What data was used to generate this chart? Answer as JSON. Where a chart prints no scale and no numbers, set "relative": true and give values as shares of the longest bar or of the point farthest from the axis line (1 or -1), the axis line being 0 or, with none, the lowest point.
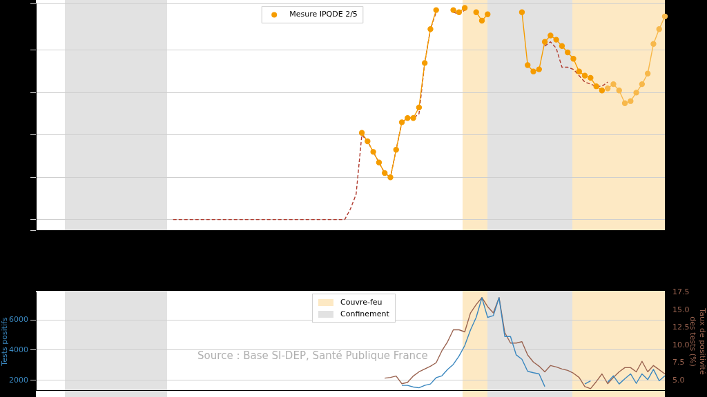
{
  "chart_data": [
    {
      "type": "line",
      "relative": true,
      "categories": [
        null,
        null,
        null,
        null,
        null,
        null,
        null,
        null,
        null,
        null,
        null,
        null,
        null,
        null,
        null,
        null,
        null,
        null,
        null,
        null,
        null,
        null,
        null,
        null,
        null,
        null,
        null,
        null,
        null,
        null,
        null,
        null,
        null,
        null,
        null,
        null,
        null,
        null,
        null,
        null,
        null,
        null,
        null,
        null,
        null,
        null,
        null,
        null,
        null,
        null,
        null,
        null,
        null,
        null,
        null,
        null,
        null,
        null,
        null,
        null,
        null,
        null,
        null,
        null,
        null,
        null,
        null,
        null,
        null,
        null,
        null,
        null,
        null,
        null,
        null,
        null,
        null,
        null,
        null,
        null,
        null,
        null,
        null,
        null,
        null,
        null,
        null,
        null,
        null,
        null,
        null,
        null,
        null,
        null,
        null,
        null,
        null,
        null,
        null,
        null,
        null,
        null,
        null,
        null,
        null,
        null,
        null,
        null,
        null,
        null,
        null
      ],
      "tick_labels": false,
      "grid": "y",
      "legend": "top",
      "series": [
        {
          "name": "Mesure IPQDE 2/5",
          "color": "#f59c00",
          "marker": "circle",
          "line_style": "solid",
          "values": [
            null,
            null,
            null,
            null,
            null,
            null,
            null,
            null,
            null,
            null,
            null,
            null,
            null,
            null,
            null,
            null,
            null,
            null,
            null,
            null,
            null,
            null,
            null,
            null,
            null,
            null,
            null,
            null,
            null,
            null,
            null,
            null,
            null,
            null,
            null,
            null,
            null,
            null,
            null,
            null,
            null,
            null,
            null,
            null,
            null,
            null,
            null,
            null,
            null,
            null,
            null,
            null,
            null,
            null,
            null,
            null,
            null,
            0.41,
            0.37,
            0.32,
            0.27,
            0.22,
            0.2,
            0.33,
            0.46,
            0.48,
            0.48,
            0.53,
            0.74,
            0.9,
            0.99,
            null,
            null,
            0.99,
            0.98,
            1.0,
            null,
            0.98,
            0.94,
            0.97,
            null,
            null,
            null,
            null,
            null,
            0.98,
            0.73,
            0.7,
            0.71,
            0.84,
            0.87,
            0.85,
            0.82,
            0.79,
            0.76,
            0.7,
            0.68,
            0.67,
            0.63,
            0.61,
            null,
            null,
            null,
            null,
            null,
            null,
            null,
            null,
            null,
            null,
            null
          ]
        },
        {
          "color": "#f7b84b",
          "marker": "circle",
          "line_style": "solid",
          "values": [
            null,
            null,
            null,
            null,
            null,
            null,
            null,
            null,
            null,
            null,
            null,
            null,
            null,
            null,
            null,
            null,
            null,
            null,
            null,
            null,
            null,
            null,
            null,
            null,
            null,
            null,
            null,
            null,
            null,
            null,
            null,
            null,
            null,
            null,
            null,
            null,
            null,
            null,
            null,
            null,
            null,
            null,
            null,
            null,
            null,
            null,
            null,
            null,
            null,
            null,
            null,
            null,
            null,
            null,
            null,
            null,
            null,
            null,
            null,
            null,
            null,
            null,
            null,
            null,
            null,
            null,
            null,
            null,
            null,
            null,
            null,
            null,
            null,
            null,
            null,
            null,
            null,
            null,
            null,
            null,
            null,
            null,
            null,
            null,
            null,
            null,
            null,
            null,
            null,
            null,
            null,
            null,
            null,
            null,
            null,
            null,
            null,
            null,
            null,
            null,
            0.62,
            0.64,
            0.61,
            0.55,
            0.56,
            0.6,
            0.64,
            0.69,
            0.83,
            0.9,
            0.96
          ]
        },
        {
          "color": "#b03a2e",
          "marker": "none",
          "line_style": "dashed",
          "values": [
            null,
            null,
            null,
            null,
            null,
            null,
            null,
            null,
            null,
            null,
            null,
            null,
            null,
            null,
            null,
            null,
            null,
            null,
            null,
            null,
            null,
            null,
            null,
            null,
            0,
            0,
            0,
            0,
            0,
            0,
            0,
            0,
            0,
            0,
            0,
            0,
            0,
            0,
            0,
            0,
            0,
            0,
            0,
            0,
            0,
            0,
            0,
            0,
            0,
            0,
            0,
            0,
            0,
            0,
            0,
            0.05,
            0.12,
            0.4,
            0.37,
            0.32,
            0.27,
            0.22,
            0.2,
            0.33,
            0.46,
            0.48,
            0.48,
            0.5,
            0.74,
            0.9,
            0.98,
            null,
            null,
            0.98,
            0.97,
            0.99,
            null,
            null,
            null,
            null,
            null,
            null,
            null,
            null,
            null,
            null,
            null,
            null,
            null,
            0.82,
            0.84,
            0.81,
            0.72,
            0.72,
            0.71,
            0.68,
            0.65,
            0.64,
            0.63,
            0.63,
            0.65,
            null,
            null,
            null,
            null,
            null,
            null,
            null,
            null,
            null,
            null
          ]
        }
      ]
    },
    {
      "type": "line",
      "ylabel": "Tests positifs",
      "y2label": "Taux de positivité\ndes tests (%)",
      "categories": [
        null,
        null,
        null,
        null,
        null,
        null,
        null,
        null,
        null,
        null,
        null,
        null,
        null,
        null,
        null,
        null,
        null,
        null,
        null,
        null,
        null,
        null,
        null,
        null,
        null,
        null,
        null,
        null,
        null,
        null,
        null,
        null,
        null,
        null,
        null,
        null,
        null,
        null,
        null,
        null,
        null,
        null,
        null,
        null,
        null,
        null,
        null,
        null,
        null,
        null,
        null,
        null,
        null,
        null,
        null,
        null,
        null,
        null,
        null,
        null,
        null,
        null,
        null,
        null,
        null,
        null,
        null,
        null,
        null,
        null,
        null,
        null,
        null,
        null,
        null,
        null,
        null,
        null,
        null,
        null,
        null,
        null,
        null,
        null,
        null,
        null,
        null,
        null,
        null,
        null,
        null,
        null,
        null,
        null,
        null,
        null,
        null,
        null,
        null,
        null,
        null,
        null,
        null,
        null,
        null,
        null,
        null,
        null,
        null,
        null,
        null
      ],
      "ylim": [
        1326,
        7810
      ],
      "yticks": [
        2000,
        4000,
        6000
      ],
      "y2lim": [
        3.55,
        17.5
      ],
      "y2ticks": [
        {
          "value": 5,
          "label": "5.0"
        },
        7.5,
        {
          "value": 10,
          "label": "10.0"
        },
        12.5,
        {
          "value": 15,
          "label": "15.0"
        },
        17.5
      ],
      "tick_labels": "y",
      "grid": "y",
      "annotations": [
        "Source : Base SI-DEP, Santé Publique France",
        "Couvre-feu",
        "Confinement"
      ],
      "series": [
        {
          "color": "#3a87bf",
          "marker": "none",
          "line_style": "solid",
          "values": [
            null,
            null,
            null,
            null,
            null,
            null,
            null,
            null,
            null,
            null,
            null,
            null,
            null,
            null,
            null,
            null,
            null,
            null,
            null,
            null,
            null,
            null,
            null,
            null,
            null,
            null,
            null,
            null,
            null,
            null,
            null,
            null,
            null,
            null,
            null,
            null,
            null,
            null,
            null,
            null,
            null,
            null,
            null,
            null,
            null,
            null,
            null,
            null,
            null,
            null,
            null,
            null,
            null,
            null,
            null,
            null,
            null,
            null,
            null,
            null,
            null,
            null,
            null,
            null,
            1660,
            1660,
            1550,
            1500,
            1660,
            1750,
            2170,
            2290,
            2720,
            3050,
            3600,
            4300,
            5330,
            6170,
            7470,
            6170,
            6290,
            7470,
            4900,
            4900,
            3680,
            3390,
            2590,
            2500,
            2420,
            1580,
            null,
            null,
            null,
            null,
            null,
            null,
            1750,
            1960,
            null,
            null,
            1870,
            2290,
            1750,
            2100,
            2420,
            1790,
            2420,
            2040,
            2720,
            1960,
            2290
          ]
        },
        {
          "axis": "y2",
          "color": "#9a6350",
          "marker": "none",
          "line_style": "solid",
          "values": [
            null,
            null,
            null,
            null,
            null,
            null,
            null,
            null,
            null,
            null,
            null,
            null,
            null,
            null,
            null,
            null,
            null,
            null,
            null,
            null,
            null,
            null,
            null,
            null,
            null,
            null,
            null,
            null,
            null,
            null,
            null,
            null,
            null,
            null,
            null,
            null,
            null,
            null,
            null,
            null,
            null,
            null,
            null,
            null,
            null,
            null,
            null,
            null,
            null,
            null,
            null,
            null,
            null,
            null,
            null,
            null,
            null,
            null,
            null,
            null,
            null,
            5.3,
            5.4,
            5.6,
            4.5,
            4.7,
            5.6,
            6.2,
            6.6,
            7.0,
            7.5,
            9.2,
            10.5,
            12.2,
            12.2,
            11.9,
            14.6,
            15.8,
            16.8,
            15.5,
            14.6,
            16.8,
            11.8,
            10.3,
            10.3,
            10.5,
            8.6,
            7.6,
            7.0,
            6.2,
            7.1,
            6.9,
            6.6,
            6.4,
            6.0,
            5.4,
            4.1,
            3.8,
            4.8,
            5.9,
            4.5,
            5.4,
            6.2,
            6.8,
            6.8,
            6.2,
            7.7,
            6.2,
            7.1,
            6.5,
            5.9
          ]
        }
      ]
    }
  ]
}
